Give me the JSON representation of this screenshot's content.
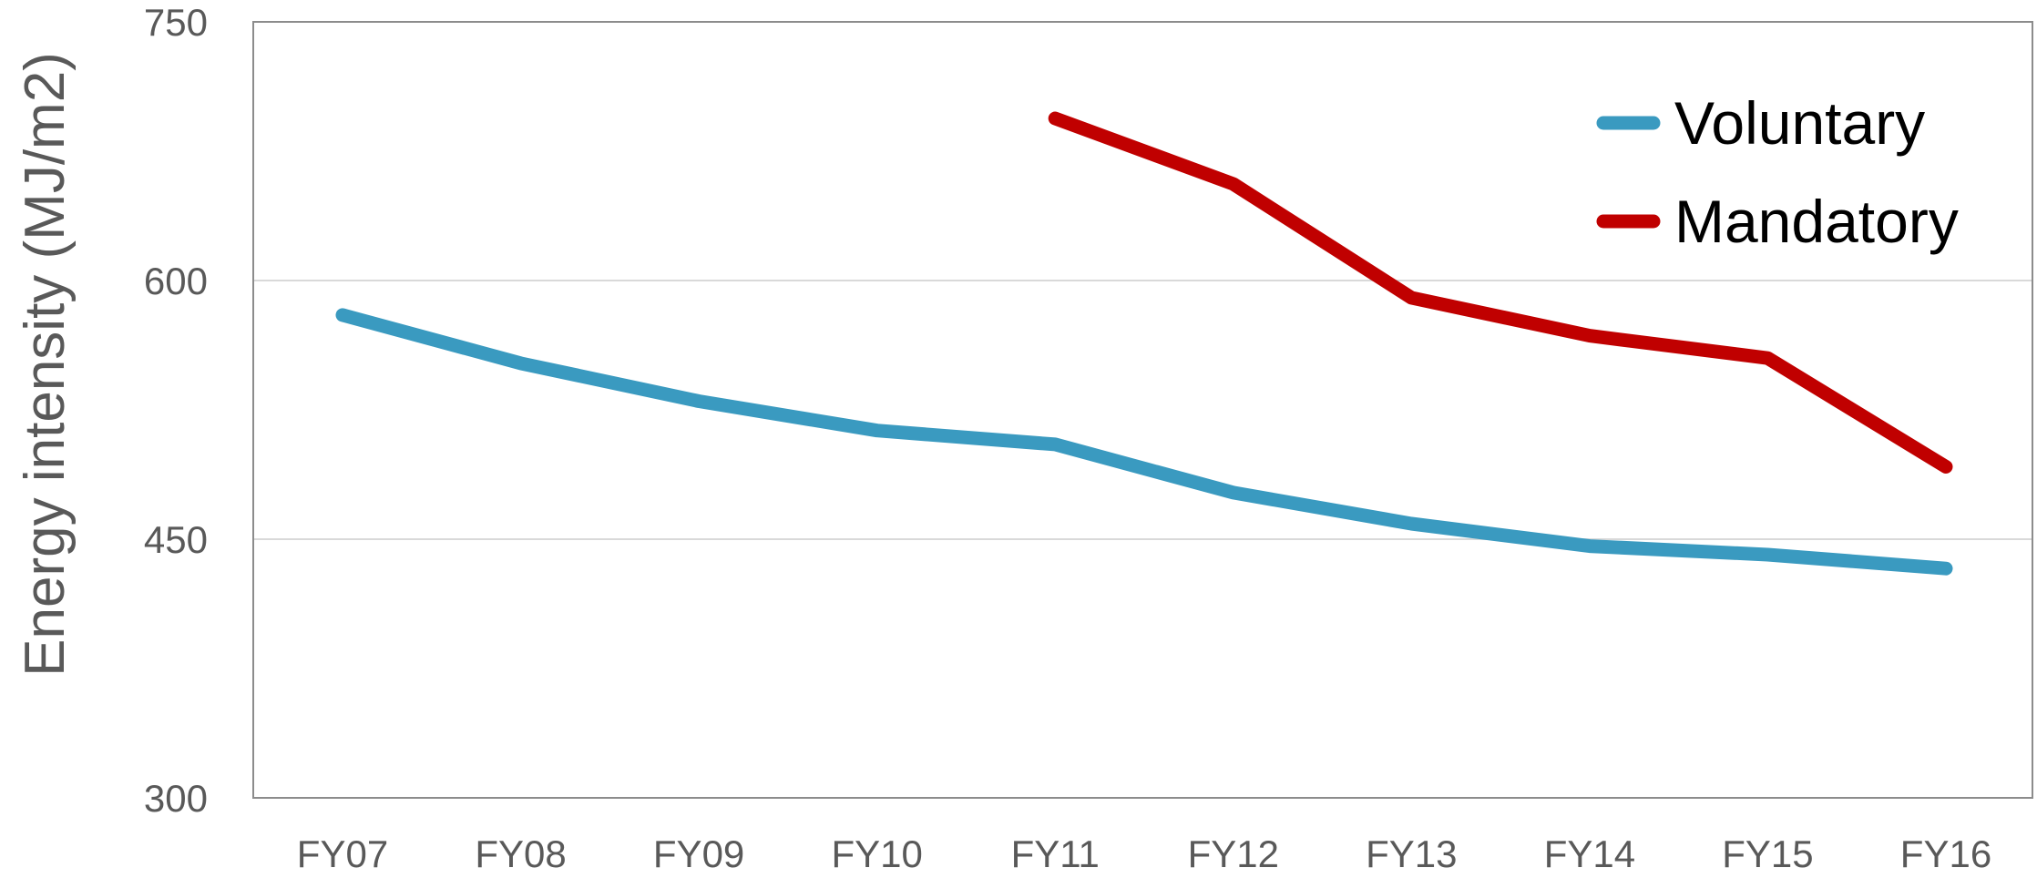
{
  "chart_data": {
    "type": "line",
    "title": "",
    "xlabel": "",
    "ylabel": "Energy intensity (MJ/m2)",
    "categories": [
      "FY07",
      "FY08",
      "FY09",
      "FY10",
      "FY11",
      "FY12",
      "FY13",
      "FY14",
      "FY15",
      "FY16"
    ],
    "ylim": [
      300,
      750
    ],
    "yticks": [
      300,
      450,
      600,
      750
    ],
    "grid": true,
    "legend_position": "top-right",
    "series": [
      {
        "name": "Voluntary",
        "color": "#3A9AC0",
        "values": [
          580,
          552,
          530,
          513,
          505,
          477,
          459,
          446,
          441,
          433
        ]
      },
      {
        "name": "Mandatory",
        "color": "#C00000",
        "values": [
          null,
          null,
          null,
          null,
          694,
          656,
          590,
          568,
          555,
          492
        ]
      }
    ]
  }
}
